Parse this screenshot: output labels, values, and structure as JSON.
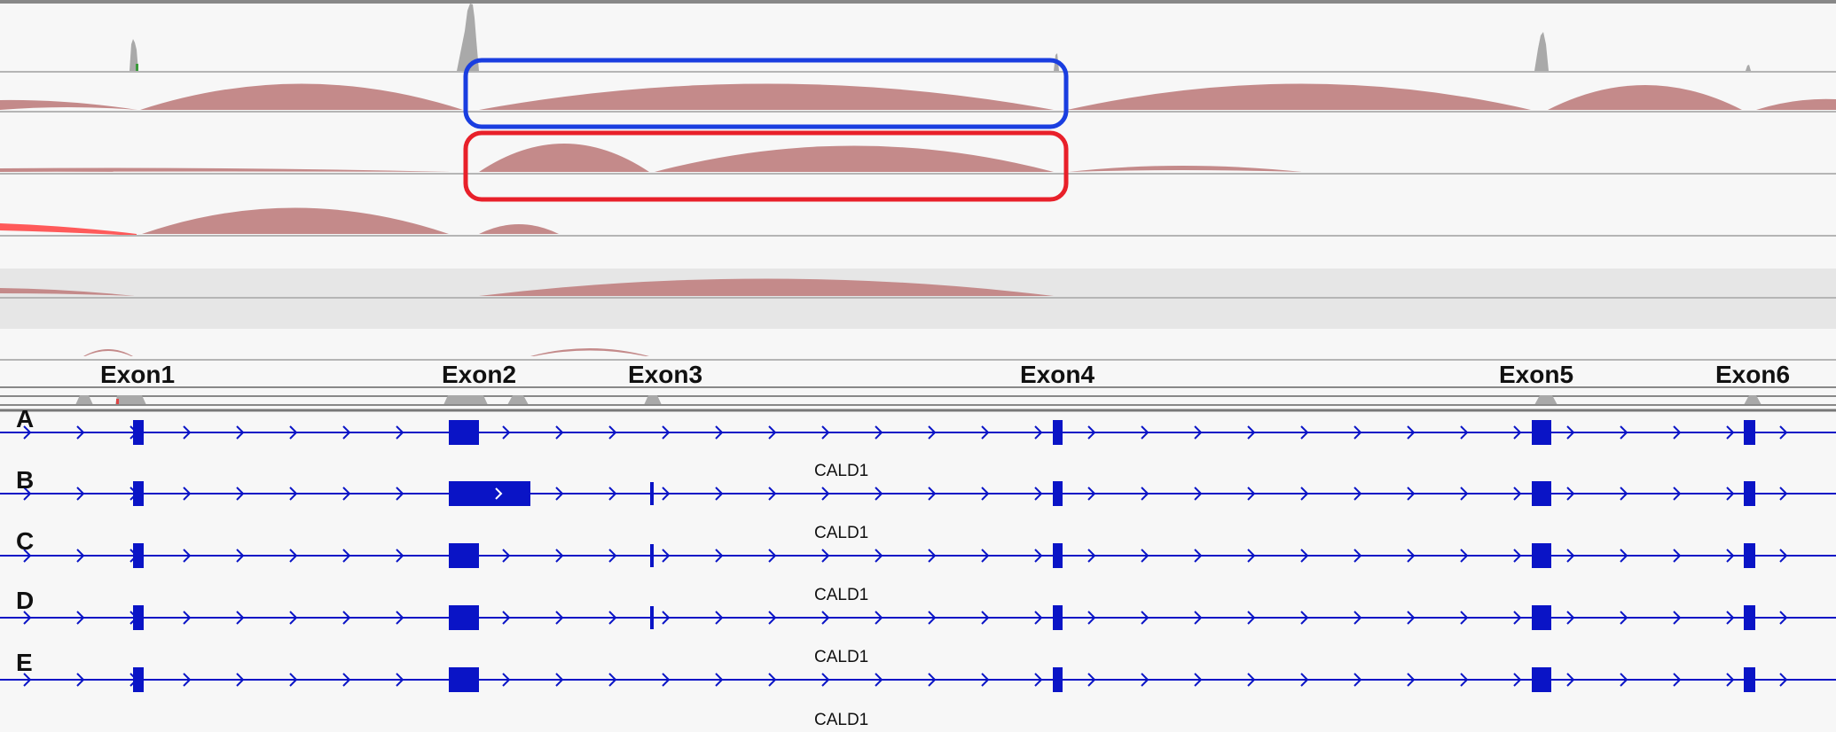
{
  "colors": {
    "background": "#f7f7f7",
    "coverage": "#a9a9a9",
    "junction": "#c48a8a",
    "junction_highlight": "#ff5a5a",
    "transcript": "#0a14c6",
    "box_blue": "#1a3ee0",
    "box_red": "#e8202a",
    "band": "#e6e6e6"
  },
  "exon_labels": [
    "Exon1",
    "Exon2",
    "Exon3",
    "Exon4",
    "Exon5",
    "Exon6"
  ],
  "transcripts": [
    {
      "track": "A",
      "gene": "CALD1",
      "exons": [
        "Exon1",
        "Exon2",
        "Exon4",
        "Exon5",
        "Exon6"
      ]
    },
    {
      "track": "B",
      "gene": "CALD1",
      "exons": [
        "Exon1",
        "Exon2",
        "Exon3",
        "Exon4",
        "Exon5",
        "Exon6"
      ]
    },
    {
      "track": "C",
      "gene": "CALD1",
      "exons": [
        "Exon1",
        "Exon2",
        "Exon3",
        "Exon4",
        "Exon5",
        "Exon6"
      ]
    },
    {
      "track": "D",
      "gene": "CALD1",
      "exons": [
        "Exon1",
        "Exon2",
        "Exon3",
        "Exon4",
        "Exon5",
        "Exon6"
      ]
    },
    {
      "track": "E",
      "gene": "CALD1",
      "exons": [
        "Exon1",
        "Exon2",
        "Exon4",
        "Exon5",
        "Exon6"
      ]
    }
  ]
}
